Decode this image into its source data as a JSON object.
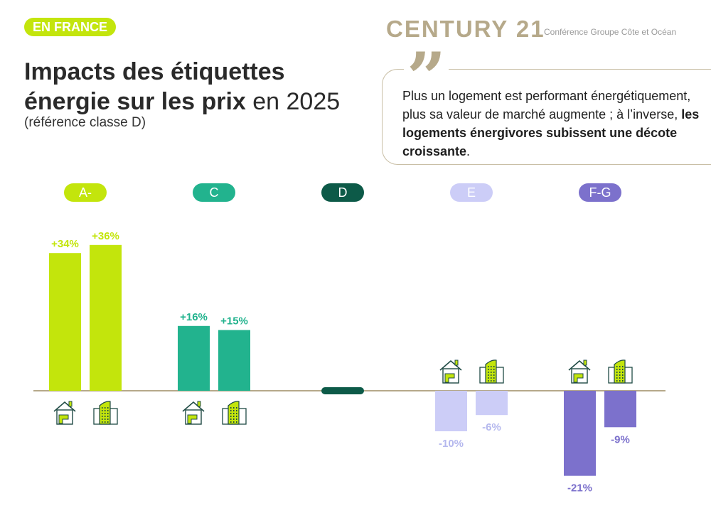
{
  "header": {
    "badge": "EN FRANCE",
    "logo": "CENTURY 21",
    "logo_sub": "Conférence Groupe Côte et Océan"
  },
  "title": {
    "line1": "Impacts des étiquettes",
    "line2_bold": "énergie sur les prix",
    "line2_light": " en 2025",
    "subtitle": "(référence classe D)"
  },
  "quote": {
    "marks": "❞",
    "text_plain": "Plus un logement est performant énergétiquement, plus sa valeur de marché augmente ; à l’inverse, ",
    "text_bold": "les logements énergivores subissent une décote croissante",
    "text_end": "."
  },
  "chart_data": {
    "type": "bar",
    "categories": [
      "A-",
      "C",
      "D",
      "E",
      "F-G"
    ],
    "category_colors": [
      "#c3e50c",
      "#22b38e",
      "#0d5a48",
      "#cccdf7",
      "#7c71cc"
    ],
    "label_text_colors": [
      "#c3e50c",
      "#22b38e",
      "#0d5a48",
      "#b5b8ee",
      "#7c71cc"
    ],
    "series": [
      {
        "icon": "house-icon",
        "values": [
          34,
          16,
          0,
          -10,
          -21
        ],
        "labels": [
          "+34%",
          "+16%",
          "",
          "-10%",
          "-21%"
        ]
      },
      {
        "icon": "apartment-building-icon",
        "values": [
          36,
          15,
          0,
          -6,
          -9
        ],
        "labels": [
          "+36%",
          "+15%",
          "",
          "-6%",
          "-9%"
        ]
      }
    ],
    "reference_category": "D",
    "axis_color": "#b6a98a"
  }
}
